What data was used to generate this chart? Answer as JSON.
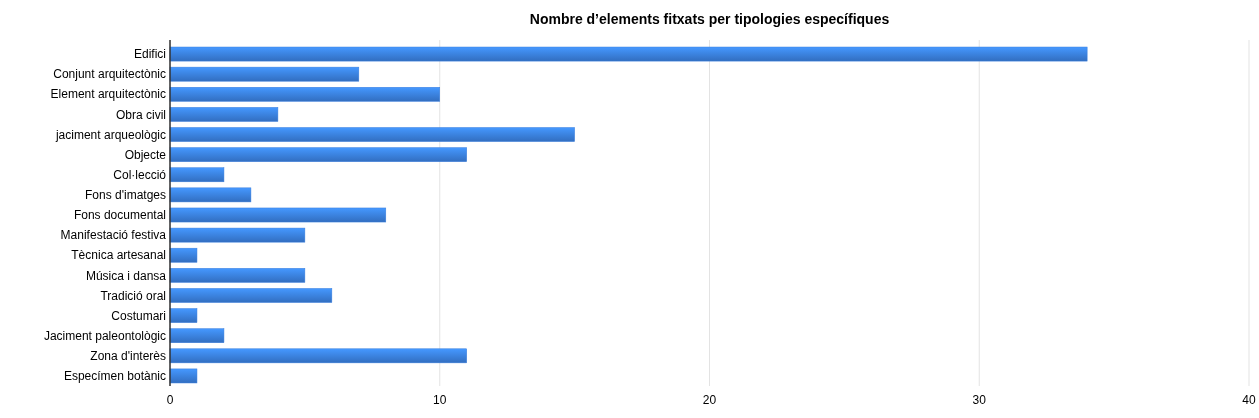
{
  "chart_data": {
    "type": "bar",
    "orientation": "horizontal",
    "title": "Nombre d’elements fitxats per tipologies específiques",
    "categories": [
      "Edifici",
      "Conjunt arquitectònic",
      "Element arquitectònic",
      "Obra civil",
      "jaciment arqueològic",
      "Objecte",
      "Col·lecció",
      "Fons d'imatges",
      "Fons documental",
      "Manifestació festiva",
      "Tècnica artesanal",
      "Música i dansa",
      "Tradició oral",
      "Costumari",
      "Jaciment paleontològic",
      "Zona d'interès",
      "Especímen botànic"
    ],
    "values": [
      34,
      7,
      10,
      4,
      15,
      11,
      2,
      3,
      8,
      5,
      1,
      5,
      6,
      1,
      2,
      11,
      1
    ],
    "color": "#3a7fde",
    "xlim": [
      0,
      40
    ],
    "xticks": [
      0,
      10,
      20,
      30,
      40
    ],
    "grid": "x"
  }
}
